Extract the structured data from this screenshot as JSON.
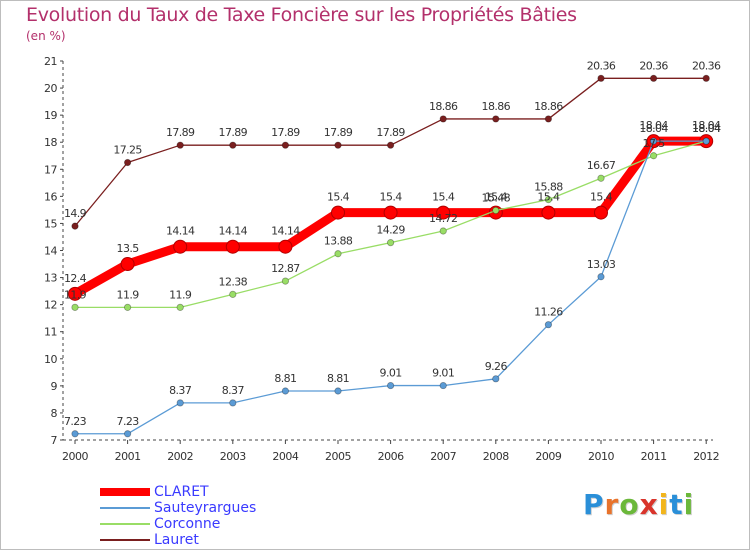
{
  "chart_data": {
    "type": "line",
    "title": "Evolution du Taux de Taxe Foncière sur les Propriétés Bâties",
    "ylabel": "(en %)",
    "xlabel": "",
    "x": [
      "2000",
      "2001",
      "2002",
      "2003",
      "2004",
      "2005",
      "2006",
      "2007",
      "2008",
      "2009",
      "2010",
      "2011",
      "2012"
    ],
    "ylim": [
      7,
      21
    ],
    "yticks": [
      "7",
      "8",
      "9",
      "10",
      "11",
      "12",
      "13",
      "14",
      "15",
      "16",
      "17",
      "18",
      "19",
      "20",
      "21"
    ],
    "grid": false,
    "series": [
      {
        "name": "CLARET",
        "color": "#ff0000",
        "values": [
          12.4,
          13.5,
          14.14,
          14.14,
          14.14,
          15.4,
          15.4,
          15.4,
          15.4,
          15.4,
          15.4,
          18.04,
          18.04
        ],
        "labels": [
          "12.4",
          "13.5",
          "14.14",
          "14.14",
          "14.14",
          "15.4",
          "15.4",
          "15.4",
          "15.4",
          "15.4",
          "15.4",
          "18.04",
          "18.04"
        ]
      },
      {
        "name": "Sauteyrargues",
        "color": "#5b9bd5",
        "values": [
          7.23,
          7.23,
          8.37,
          8.37,
          8.81,
          8.81,
          9.01,
          9.01,
          9.26,
          11.26,
          13.03,
          18.04,
          18.04
        ],
        "labels": [
          "7.23",
          "7.23",
          "8.37",
          "8.37",
          "8.81",
          "8.81",
          "9.01",
          "9.01",
          "9.26",
          "11.26",
          "13.03",
          "18.04",
          "18.04"
        ]
      },
      {
        "name": "Corconne",
        "color": "#99dd66",
        "values": [
          11.9,
          11.9,
          11.9,
          12.38,
          12.87,
          13.88,
          14.29,
          14.72,
          15.48,
          15.88,
          16.67,
          17.5,
          18.04
        ],
        "labels": [
          "11.9",
          "11.9",
          "11.9",
          "12.38",
          "12.87",
          "13.88",
          "14.29",
          "14.72",
          "15.48",
          "15.88",
          "16.67",
          "17.5",
          "18.04"
        ]
      },
      {
        "name": "Lauret",
        "color": "#7a1f1f",
        "values": [
          14.9,
          17.25,
          17.89,
          17.89,
          17.89,
          17.89,
          17.89,
          18.86,
          18.86,
          18.86,
          20.36,
          20.36,
          20.36
        ],
        "labels": [
          "14.9",
          "17.25",
          "17.89",
          "17.89",
          "17.89",
          "17.89",
          "17.89",
          "18.86",
          "18.86",
          "18.86",
          "20.36",
          "20.36",
          "20.36"
        ]
      }
    ]
  },
  "legend": {
    "items": [
      {
        "label": "CLARET",
        "color": "#ff0000"
      },
      {
        "label": "Sauteyrargues",
        "color": "#5b9bd5"
      },
      {
        "label": "Corconne",
        "color": "#99dd66"
      },
      {
        "label": "Lauret",
        "color": "#7a1f1f"
      }
    ]
  },
  "logo": {
    "letters": [
      "P",
      "r",
      "o",
      "x",
      "i",
      "t",
      "i"
    ],
    "colors": [
      "#2a8fd8",
      "#e8732b",
      "#6bb83a",
      "#d9342b",
      "#f2b51c",
      "#2a8fd8",
      "#6bb83a"
    ]
  }
}
